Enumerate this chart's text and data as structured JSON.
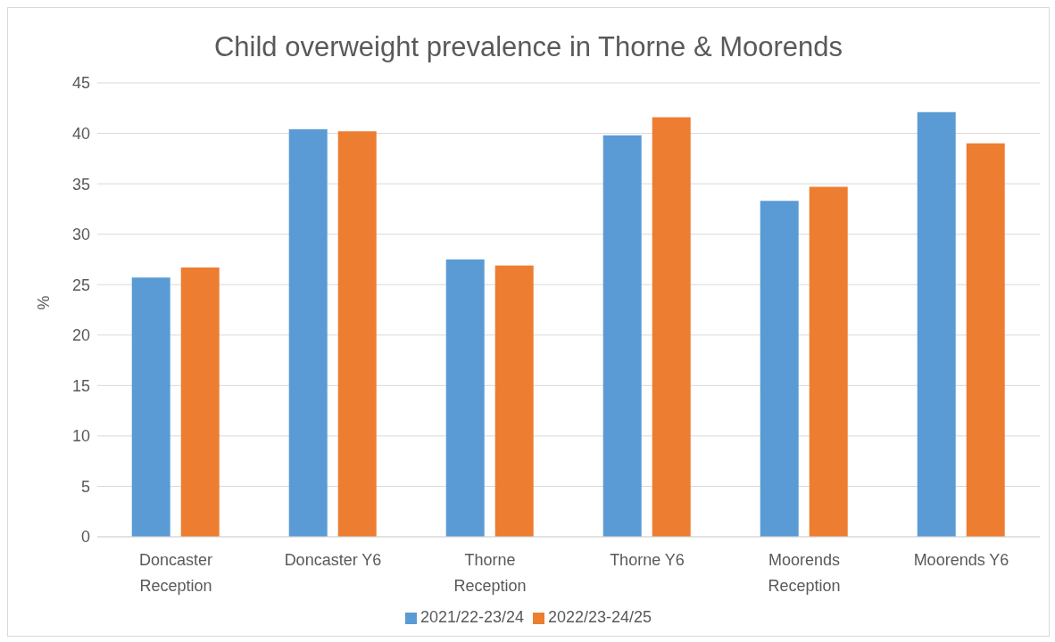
{
  "chart_data": {
    "type": "bar",
    "title": "Child overweight prevalence in Thorne & Moorends",
    "ylabel": "%",
    "categories": [
      "Doncaster Reception",
      "Doncaster Y6",
      "Thorne Reception",
      "Thorne Y6",
      "Moorends Reception",
      "Moorends Y6"
    ],
    "series": [
      {
        "name": "2021/22-23/24",
        "color": "#5b9bd5",
        "values": [
          25.7,
          40.4,
          27.5,
          39.8,
          33.3,
          42.1
        ]
      },
      {
        "name": "2022/23-24/25",
        "color": "#ed7d31",
        "values": [
          26.7,
          40.2,
          26.9,
          41.6,
          34.7,
          39.0
        ]
      }
    ],
    "ylim": [
      0,
      45
    ],
    "yticks": [
      0,
      5,
      10,
      15,
      20,
      25,
      30,
      35,
      40,
      45
    ],
    "grid": "y",
    "legend": "bottom"
  }
}
